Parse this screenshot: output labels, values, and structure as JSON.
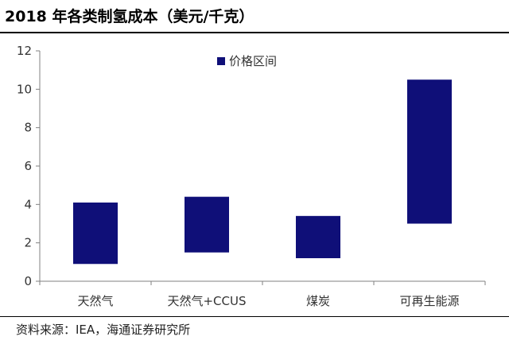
{
  "title": "2018 年各类制氢成本（美元/千克）",
  "source": "资料来源：IEA，海通证券研究所",
  "chart_data": {
    "type": "bar",
    "subtype": "floating-range",
    "categories": [
      "天然气",
      "天然气+CCUS",
      "煤炭",
      "可再生能源"
    ],
    "series": [
      {
        "name": "价格区间",
        "ranges": [
          [
            0.9,
            4.1
          ],
          [
            1.5,
            4.4
          ],
          [
            1.2,
            3.4
          ],
          [
            3.0,
            10.5
          ]
        ]
      }
    ],
    "ylim": [
      0,
      12
    ],
    "yticks": [
      0,
      2,
      4,
      6,
      8,
      10,
      12
    ],
    "grid": false,
    "legend_position": "top-center",
    "colors": {
      "bar": "#0f0f78",
      "axis": "#808080"
    }
  }
}
